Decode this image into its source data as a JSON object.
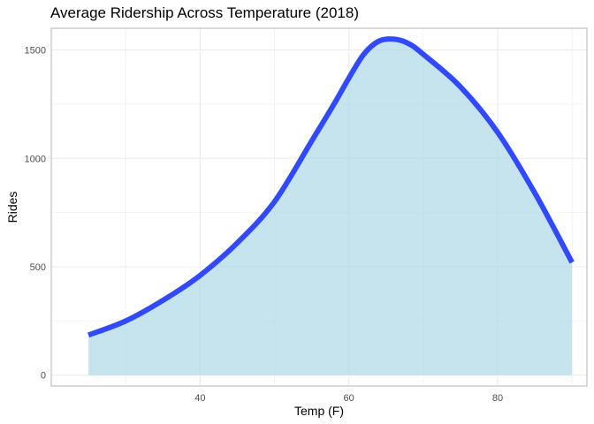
{
  "chart_data": {
    "type": "area",
    "title": "Average Ridership Across Temperature (2018)",
    "xlabel": "Temp (F)",
    "ylabel": "Rides",
    "xlim": [
      20,
      92
    ],
    "ylim": [
      -50,
      1600
    ],
    "x_ticks": [
      40,
      60,
      80
    ],
    "y_ticks": [
      0,
      500,
      1000,
      1500
    ],
    "grid": true,
    "legend": "none",
    "colors": {
      "line": "#3149ff",
      "area": "#add8e6",
      "grid": "#ebebeb",
      "panel_border": "#b3b3b3"
    },
    "series": [
      {
        "x": [
          25,
          30,
          35,
          40,
          45,
          50,
          55,
          58,
          60,
          62,
          64,
          66,
          68,
          70,
          75,
          80,
          85,
          90
        ],
        "values": [
          185,
          250,
          345,
          460,
          610,
          800,
          1080,
          1250,
          1370,
          1480,
          1540,
          1550,
          1530,
          1480,
          1330,
          1120,
          840,
          520
        ]
      }
    ]
  }
}
